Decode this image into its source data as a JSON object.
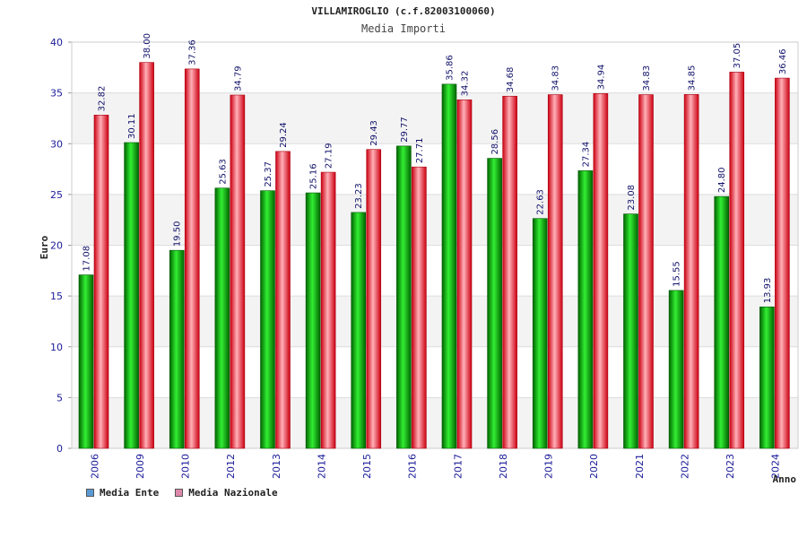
{
  "chart_data": {
    "type": "bar",
    "title": "VILLAMIROGLIO (c.f.82003100060)",
    "subtitle": "Media Importi",
    "xlabel": "Anno",
    "ylabel": "Euro",
    "ylim": [
      0,
      40
    ],
    "yticks": [
      0,
      5,
      10,
      15,
      20,
      25,
      30,
      35,
      40
    ],
    "grid": true,
    "legend_position": "bottom-left",
    "categories": [
      "2006",
      "2009",
      "2010",
      "2012",
      "2013",
      "2014",
      "2015",
      "2016",
      "2017",
      "2018",
      "2019",
      "2020",
      "2021",
      "2022",
      "2023",
      "2024"
    ],
    "series": [
      {
        "name": "Media Ente",
        "values": [
          17.08,
          30.11,
          19.5,
          25.63,
          25.37,
          25.16,
          23.23,
          29.77,
          35.86,
          28.56,
          22.63,
          27.34,
          23.08,
          15.55,
          24.8,
          13.93
        ],
        "labels": [
          "17.08",
          "30.11",
          "19.50",
          "25.63",
          "25.37",
          "25.16",
          "23.23",
          "29.77",
          "35.86",
          "28.56",
          "22.63",
          "27.34",
          "23.08",
          "15.55",
          "24.80",
          "13.93"
        ],
        "color": "#00aa00",
        "legend_color": "#5b9bd5"
      },
      {
        "name": "Media Nazionale",
        "values": [
          32.82,
          38.0,
          37.36,
          34.79,
          29.24,
          27.19,
          29.43,
          27.71,
          34.32,
          34.68,
          34.83,
          34.94,
          34.83,
          34.85,
          37.05,
          36.46
        ],
        "labels": [
          "32.82",
          "38.00",
          "37.36",
          "34.79",
          "29.24",
          "27.19",
          "29.43",
          "27.71",
          "34.32",
          "34.68",
          "34.83",
          "34.94",
          "34.83",
          "34.85",
          "37.05",
          "36.46"
        ],
        "color": "#dd1122",
        "legend_color": "#dd88aa"
      }
    ]
  }
}
